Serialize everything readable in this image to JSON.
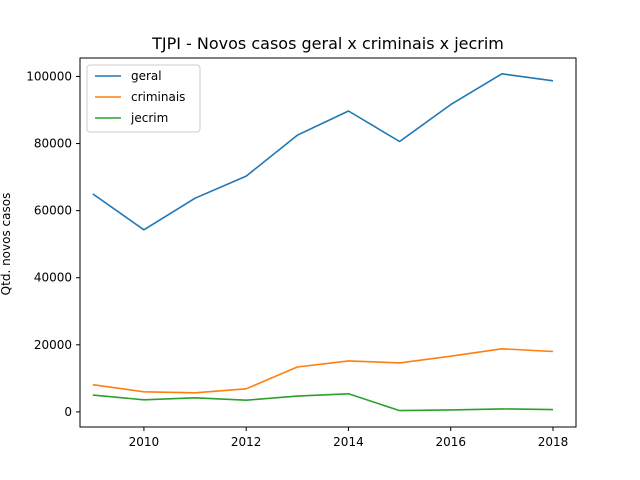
{
  "chart_data": {
    "type": "line",
    "title": "TJPI - Novos casos geral x criminais x jecrim",
    "xlabel": "",
    "ylabel": "Qtd. novos casos",
    "x": [
      2009,
      2010,
      2011,
      2012,
      2013,
      2014,
      2015,
      2016,
      2017,
      2018
    ],
    "xlim": [
      2008.75,
      2018.45
    ],
    "ylim": [
      -4500,
      105500
    ],
    "xticks": [
      2010,
      2012,
      2014,
      2016,
      2018
    ],
    "yticks": [
      0,
      20000,
      40000,
      60000,
      80000,
      100000
    ],
    "grid": false,
    "legend_position": "top-left",
    "series": [
      {
        "name": "geral",
        "color": "#1f77b4",
        "values": [
          65000,
          54300,
          63700,
          70300,
          82500,
          89700,
          80600,
          91600,
          100800,
          98700
        ]
      },
      {
        "name": "criminais",
        "color": "#ff7f0e",
        "values": [
          8100,
          6000,
          5700,
          6900,
          13400,
          15200,
          14600,
          16600,
          18800,
          18000
        ]
      },
      {
        "name": "jecrim",
        "color": "#2ca02c",
        "values": [
          5000,
          3600,
          4200,
          3500,
          4700,
          5400,
          400,
          600,
          900,
          700
        ]
      }
    ]
  }
}
